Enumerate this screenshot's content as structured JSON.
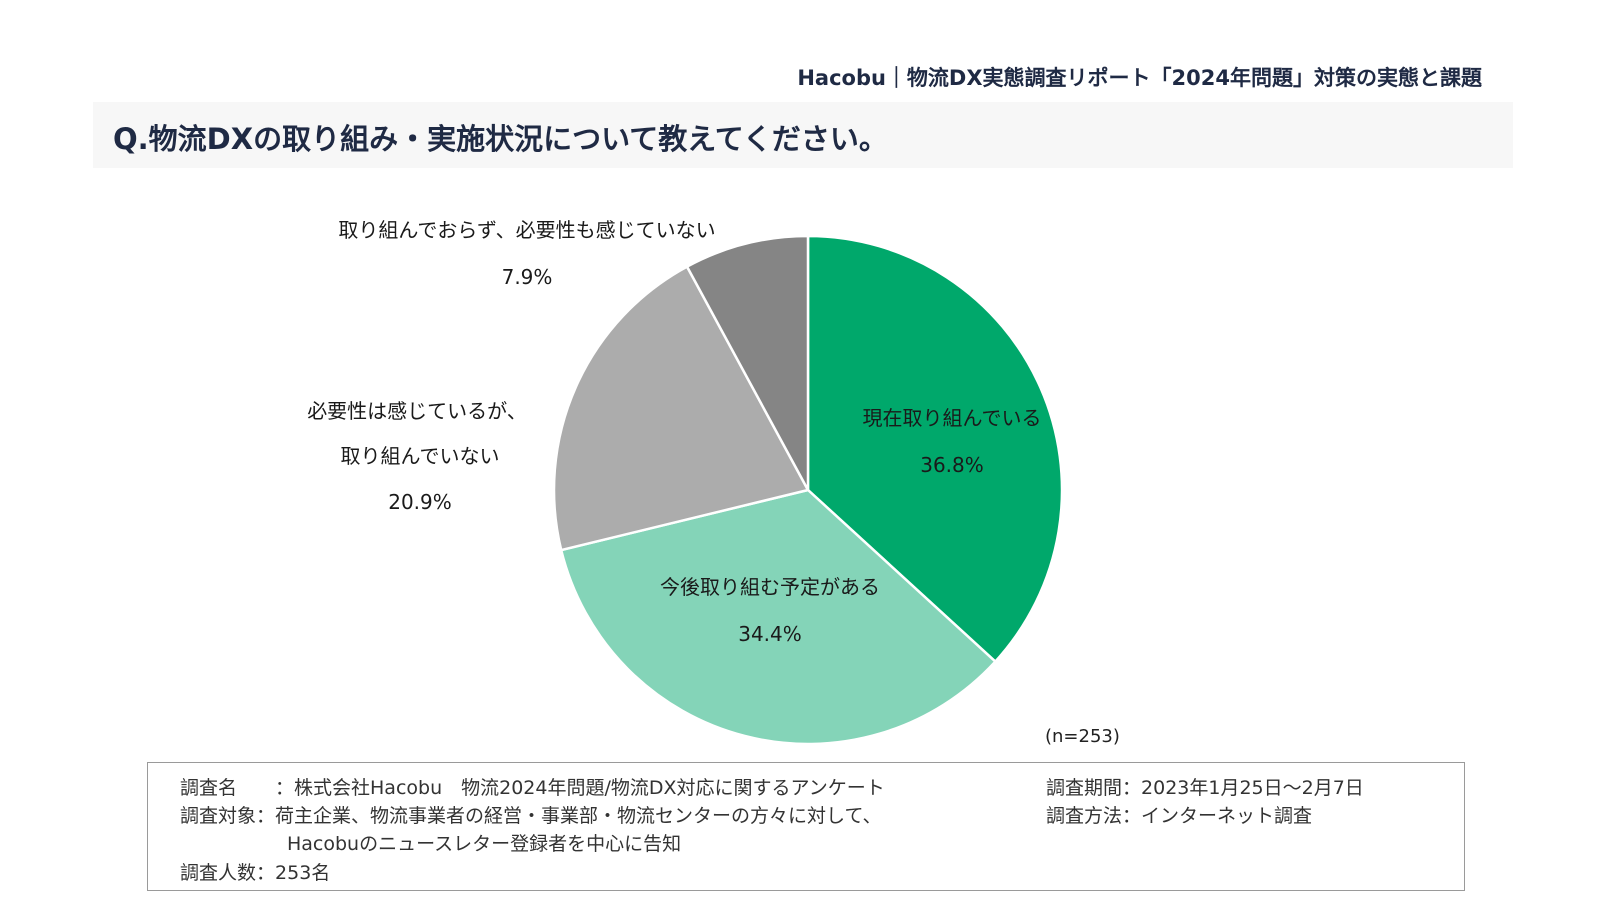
{
  "header": {
    "brand_line": "Hacobu｜物流DX実態調査リポート「2024年問題」対策の実態と課題"
  },
  "question": {
    "title": "Q.物流DXの取り組み・実施状況について教えてください。"
  },
  "chart_data": {
    "type": "pie",
    "title": "",
    "slices": [
      {
        "label": "現在取り組んでいる",
        "value": 36.8,
        "value_label": "36.8%",
        "color": "#00a86b"
      },
      {
        "label": "今後取り組む予定がある",
        "value": 34.4,
        "value_label": "34.4%",
        "color": "#84d4b8"
      },
      {
        "label_lines": [
          "必要性は感じているが、",
          "取り組んでいない"
        ],
        "value": 20.9,
        "value_label": "20.9%",
        "color": "#acacac"
      },
      {
        "label": "取り組んでおらず、必要性も感じていない",
        "value": 7.9,
        "value_label": "7.9%",
        "color": "#858585"
      }
    ],
    "start_angle": "12 o'clock",
    "direction": "clockwise",
    "legend": "none",
    "note": "(n=253)"
  },
  "survey_info": {
    "name_key": "調査名　　：",
    "name_value": "株式会社Hacobu　物流2024年問題/物流DX対応に関するアンケート",
    "target_key": "調査対象：",
    "target_value_1": "荷主企業、物流事業者の経営・事業部・物流センターの方々に対して、",
    "target_value_2": "Hacobuのニュースレター登録者を中心に告知",
    "count_key": "調査人数：",
    "count_value": "253名",
    "period_key": "調査期間：",
    "period_value": "2023年1月25日～2月7日",
    "method_key": "調査方法：",
    "method_value": "インターネット調査"
  }
}
